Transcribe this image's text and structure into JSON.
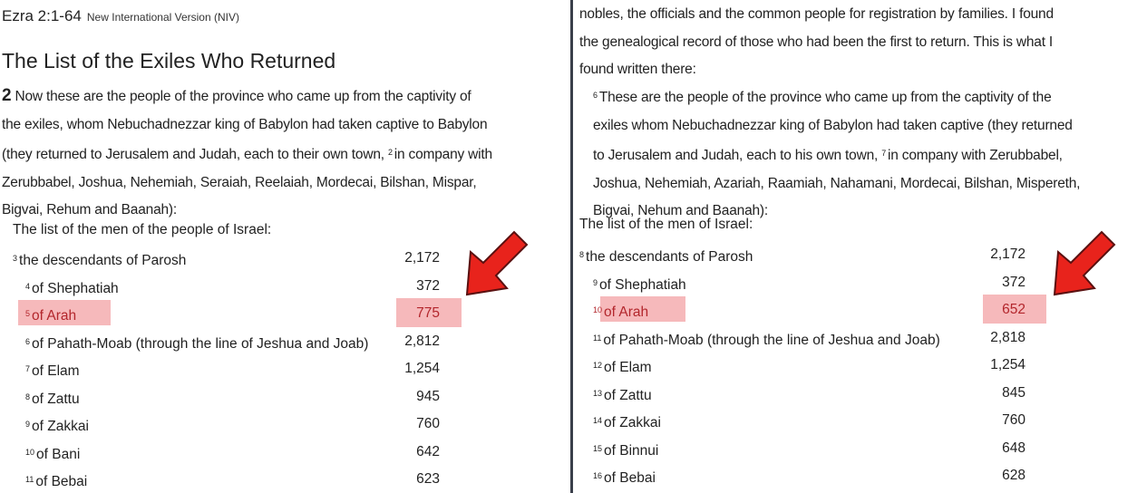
{
  "left": {
    "reference": "Ezra 2:1-64",
    "version": "New International Version (NIV)",
    "heading": "The List of the Exiles Who Returned",
    "chapter": "2",
    "lines": [
      "Now these are the people of the province who came up from the captivity of",
      "the exiles, whom Nebuchadnezzar king of Babylon had taken captive to Babylon",
      "(they returned to Jerusalem and Judah, each to their own town,",
      "Zerubbabel, Joshua, Nehemiah, Seraiah, Reelaiah, Mordecai, Bilshan, Mispar,",
      "Bigvai, Rehum and Baanah):"
    ],
    "verse2_num": "2",
    "verse2_text": "in company with",
    "list_intro": "The list of the men of the people of Israel:",
    "rows": [
      {
        "v": "3",
        "name": "the descendants of Parosh",
        "count": "2,172"
      },
      {
        "v": "4",
        "name": "of Shephatiah",
        "count": "372"
      },
      {
        "v": "5",
        "name": "of Arah",
        "count": "775",
        "highlight": true
      },
      {
        "v": "6",
        "name": "of Pahath-Moab (through the line of Jeshua and Joab)",
        "count": "2,812"
      },
      {
        "v": "7",
        "name": "of Elam",
        "count": "1,254"
      },
      {
        "v": "8",
        "name": "of Zattu",
        "count": "945"
      },
      {
        "v": "9",
        "name": "of Zakkai",
        "count": "760"
      },
      {
        "v": "10",
        "name": "of Bani",
        "count": "642"
      },
      {
        "v": "11",
        "name": "of Bebai",
        "count": "623"
      }
    ]
  },
  "right": {
    "lines": [
      "nobles, the officials and the common people for registration by families. I found",
      "the genealogical record of those who had been the first to return. This is what I",
      "found written there:"
    ],
    "verse6_num": "6",
    "verse_lines": [
      "These are the people of the province who came up from the captivity of the",
      "exiles whom Nebuchadnezzar king of Babylon had taken captive (they returned",
      "to Jerusalem and Judah, each to his own town,",
      "Joshua, Nehemiah, Azariah, Raamiah, Nahamani, Mordecai, Bilshan, Mispereth,",
      "Bigvai, Nehum and Baanah):"
    ],
    "verse7_num": "7",
    "verse7_text": "in company with Zerubbabel,",
    "list_intro": "The list of the men of Israel:",
    "rows": [
      {
        "v": "8",
        "name": "the descendants of Parosh",
        "count": "2,172"
      },
      {
        "v": "9",
        "name": "of Shephatiah",
        "count": "372"
      },
      {
        "v": "10",
        "name": "of Arah",
        "count": "652",
        "highlight": true
      },
      {
        "v": "11",
        "name": "of Pahath-Moab (through the line of Jeshua and Joab)",
        "count": "2,818"
      },
      {
        "v": "12",
        "name": "of Elam",
        "count": "1,254"
      },
      {
        "v": "13",
        "name": "of Zattu",
        "count": "845"
      },
      {
        "v": "14",
        "name": "of Zakkai",
        "count": "760"
      },
      {
        "v": "15",
        "name": "of Binnui",
        "count": "648"
      },
      {
        "v": "16",
        "name": "of Bebai",
        "count": "628"
      }
    ]
  },
  "colors": {
    "highlight": "#f4a7aa",
    "arrow": "#e8231c",
    "highlight_text": "#b3262c"
  },
  "icons": [
    "red-arrow-icon"
  ]
}
